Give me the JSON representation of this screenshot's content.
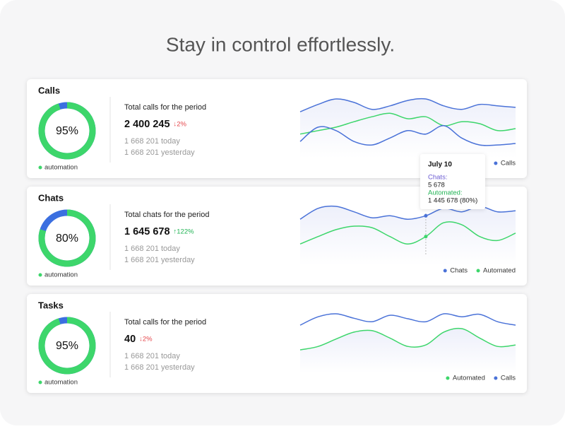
{
  "header": {
    "title": "Stay in control effortlessly."
  },
  "cards": [
    {
      "title": "Calls",
      "donut": {
        "value": 95,
        "label": "95%",
        "color": "#3dd66b",
        "rest_color": "#3b6fe0"
      },
      "donut_legend": "automation",
      "heading": "Total calls for the period",
      "value": "2 400 245",
      "change": {
        "text": "↓2%",
        "color": "#e5484d"
      },
      "today": "1 668 201 today",
      "yesterday": "1 668 201 yesterday",
      "chart": {
        "series": [
          {
            "name": "Calls",
            "color": "#4a72d8",
            "values": [
              74,
              89,
              100,
              93,
              79,
              86,
              97,
              100,
              86,
              79,
              89,
              86,
              83
            ]
          },
          {
            "color": "#3dd66b",
            "values": [
              29,
              36,
              43,
              54,
              64,
              71,
              60,
              64,
              46,
              54,
              50,
              36,
              40
            ]
          },
          {
            "color": "#4a72d8",
            "values": [
              14,
              43,
              36,
              14,
              7,
              21,
              36,
              29,
              46,
              21,
              7,
              7,
              10
            ]
          }
        ]
      }
    },
    {
      "title": "Chats",
      "donut": {
        "value": 80,
        "label": "80%",
        "color": "#3dd66b",
        "rest_color": "#3b6fe0"
      },
      "donut_legend": "automation",
      "heading": "Total chats for the period",
      "value": "1 645 678",
      "change": {
        "text": "↑122%",
        "color": "#22b455"
      },
      "today": "1 668 201 today",
      "yesterday": "1 668 201 yesterday",
      "chart": {
        "series": [
          {
            "name": "Chats",
            "color": "#4a72d8",
            "values": [
              74,
              96,
              100,
              89,
              77,
              81,
              74,
              81,
              96,
              89,
              100,
              89,
              91
            ]
          },
          {
            "name": "Automated",
            "color": "#3dd66b",
            "values": [
              24,
              39,
              53,
              60,
              57,
              39,
              24,
              39,
              67,
              63,
              39,
              31,
              46
            ]
          }
        ]
      },
      "tooltip": {
        "title": "July 10",
        "lines": [
          {
            "label": "Chats:",
            "value": "5 678",
            "color": "#6b5bd2"
          },
          {
            "label": "Automated:",
            "value": "1 445 678 (80%)",
            "color": "#22b455"
          }
        ]
      }
    },
    {
      "title": "Tasks",
      "donut": {
        "value": 95,
        "label": "95%",
        "color": "#3dd66b",
        "rest_color": "#3b6fe0"
      },
      "donut_legend": "automation",
      "heading": "Total calls for the period",
      "value": "40",
      "change": {
        "text": "↓2%",
        "color": "#e5484d"
      },
      "today": "1 668 201 today",
      "yesterday": "1 668 201 yesterday",
      "chart": {
        "series": [
          {
            "name": "Automated",
            "color": "#3dd66b",
            "values": [
              27,
              34,
              49,
              63,
              66,
              51,
              34,
              37,
              63,
              70,
              51,
              34,
              37
            ]
          },
          {
            "name": "Calls",
            "color": "#4a72d8",
            "values": [
              77,
              94,
              100,
              91,
              84,
              97,
              90,
              84,
              100,
              94,
              99,
              84,
              77
            ]
          }
        ]
      }
    }
  ]
}
